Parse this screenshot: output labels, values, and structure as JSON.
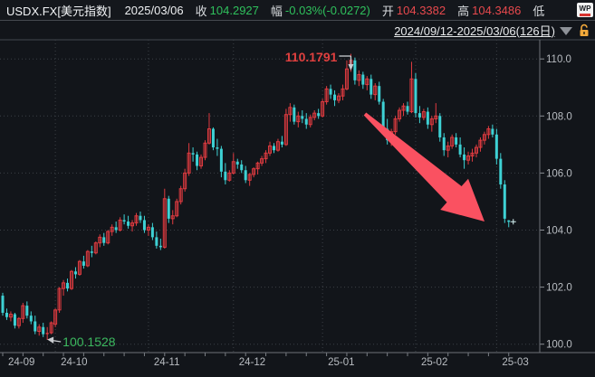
{
  "header": {
    "symbol": "USDX.FX[美元指数]",
    "date": "2025/03/06",
    "fields": [
      {
        "label": "收",
        "value": "104.2927",
        "color": "green"
      },
      {
        "label": "幅",
        "value": "-0.03%(-0.0272)",
        "color": "green"
      },
      {
        "label": "开",
        "value": "104.3382",
        "color": "red"
      },
      {
        "label": "高",
        "value": "104.3486",
        "color": "red"
      },
      {
        "label": "低",
        "value": "",
        "color": "red"
      }
    ],
    "wp_icon_text": "WP"
  },
  "range_bar": {
    "range_text": "2024/09/12-2025/03/06(126日)",
    "dropdown_icon": "chevron-down-icon",
    "lock_icon": "unlocked-padlock-icon"
  },
  "colors": {
    "background": "#12151a",
    "up_candle": "#e03b40",
    "down_candle": "#3ed1d4",
    "grid": "#3b4046",
    "axis": "#6d7178",
    "axis_text": "#b8bcc1",
    "high_annotation": "#e0403f",
    "low_annotation": "#3cb95f",
    "trend_arrow": "#fa5161",
    "annotation_arrow": "#c9ccd0",
    "last_price_marker": "#d8f6f6"
  },
  "chart_data": {
    "type": "candlestick",
    "title": "USDX.FX 美元指数 2024/09/12-2025/03/06 daily candlesticks",
    "y_axis_ticks": [
      "110.0",
      "108.0",
      "106.0",
      "104.0",
      "102.0",
      "100.0"
    ],
    "ylim": [
      99.7,
      110.7
    ],
    "x_ticks": [
      {
        "label": "24-09",
        "index": 0
      },
      {
        "label": "24-10",
        "index": 13
      },
      {
        "label": "24-11",
        "index": 36
      },
      {
        "label": "24-12",
        "index": 57
      },
      {
        "label": "25-01",
        "index": 79
      },
      {
        "label": "25-02",
        "index": 102
      },
      {
        "label": "25-03",
        "index": 122
      }
    ],
    "annotations": {
      "high": {
        "text": "110.1791",
        "price": 110.1791,
        "index": 86
      },
      "low": {
        "text": "100.1528",
        "price": 100.1528,
        "index": 11
      },
      "trend_arrow": {
        "start": [
          403,
          126
        ],
        "tip": [
          535,
          245
        ]
      },
      "last_price_marker": {
        "index": 125,
        "price": 104.2927
      }
    },
    "candles": [
      [
        101.7,
        101.8,
        101.0,
        101.1
      ],
      [
        101.1,
        101.25,
        100.85,
        100.95
      ],
      [
        100.95,
        101.15,
        100.8,
        101.05
      ],
      [
        101.05,
        101.1,
        100.55,
        100.65
      ],
      [
        100.65,
        100.95,
        100.55,
        100.9
      ],
      [
        100.9,
        101.45,
        100.75,
        101.35
      ],
      [
        101.35,
        101.5,
        100.9,
        101.0
      ],
      [
        101.0,
        101.15,
        100.7,
        100.8
      ],
      [
        100.8,
        101.0,
        100.35,
        100.45
      ],
      [
        100.45,
        100.7,
        100.3,
        100.6
      ],
      [
        100.6,
        100.75,
        100.25,
        100.35
      ],
      [
        100.35,
        100.6,
        100.15,
        100.4
      ],
      [
        100.4,
        100.8,
        100.35,
        100.75
      ],
      [
        100.7,
        101.25,
        100.6,
        101.2
      ],
      [
        101.2,
        102.0,
        101.1,
        101.95
      ],
      [
        101.95,
        102.25,
        101.7,
        102.15
      ],
      [
        102.15,
        102.3,
        101.85,
        101.95
      ],
      [
        101.95,
        102.6,
        101.9,
        102.55
      ],
      [
        102.55,
        102.7,
        102.3,
        102.45
      ],
      [
        102.45,
        102.95,
        102.4,
        102.9
      ],
      [
        102.9,
        103.1,
        102.65,
        102.75
      ],
      [
        102.75,
        103.3,
        102.7,
        103.25
      ],
      [
        103.25,
        103.45,
        103.05,
        103.2
      ],
      [
        103.2,
        103.6,
        103.15,
        103.55
      ],
      [
        103.55,
        103.85,
        103.4,
        103.75
      ],
      [
        103.75,
        103.9,
        103.45,
        103.55
      ],
      [
        103.55,
        104.0,
        103.5,
        103.95
      ],
      [
        103.95,
        104.2,
        103.8,
        104.1
      ],
      [
        104.1,
        104.3,
        103.9,
        104.0
      ],
      [
        104.0,
        104.45,
        103.95,
        104.35
      ],
      [
        104.35,
        104.55,
        104.2,
        104.3
      ],
      [
        104.3,
        104.5,
        104.05,
        104.15
      ],
      [
        104.15,
        104.35,
        103.95,
        104.25
      ],
      [
        104.25,
        104.6,
        104.15,
        104.5
      ],
      [
        104.5,
        104.65,
        104.25,
        104.35
      ],
      [
        104.35,
        104.5,
        103.9,
        104.0
      ],
      [
        104.0,
        104.2,
        103.8,
        104.1
      ],
      [
        104.1,
        104.25,
        103.65,
        103.75
      ],
      [
        103.75,
        103.95,
        103.35,
        103.45
      ],
      [
        103.45,
        103.7,
        103.3,
        103.4
      ],
      [
        103.4,
        105.45,
        103.35,
        105.1
      ],
      [
        105.1,
        105.2,
        104.25,
        104.4
      ],
      [
        104.4,
        104.7,
        104.2,
        104.5
      ],
      [
        104.5,
        105.1,
        104.45,
        105.0
      ],
      [
        105.0,
        105.55,
        104.9,
        105.45
      ],
      [
        105.45,
        106.15,
        105.35,
        106.0
      ],
      [
        106.0,
        107.05,
        105.9,
        106.7
      ],
      [
        106.7,
        106.9,
        106.4,
        106.65
      ],
      [
        106.65,
        106.75,
        106.1,
        106.25
      ],
      [
        106.25,
        106.65,
        106.15,
        106.55
      ],
      [
        106.55,
        107.15,
        106.45,
        107.05
      ],
      [
        107.05,
        108.1,
        107.0,
        107.55
      ],
      [
        107.55,
        107.6,
        106.8,
        106.9
      ],
      [
        106.9,
        107.2,
        106.6,
        106.85
      ],
      [
        106.85,
        106.95,
        105.85,
        106.05
      ],
      [
        106.05,
        106.35,
        105.6,
        105.75
      ],
      [
        105.75,
        106.1,
        105.7,
        106.0
      ],
      [
        106.0,
        106.7,
        105.95,
        106.4
      ],
      [
        106.4,
        106.5,
        106.15,
        106.3
      ],
      [
        106.3,
        106.45,
        106.0,
        106.1
      ],
      [
        106.1,
        106.25,
        105.65,
        105.75
      ],
      [
        105.75,
        106.0,
        105.55,
        105.95
      ],
      [
        105.95,
        106.2,
        105.85,
        106.15
      ],
      [
        106.15,
        106.4,
        105.95,
        106.35
      ],
      [
        106.35,
        106.6,
        106.25,
        106.5
      ],
      [
        106.5,
        106.8,
        106.35,
        106.7
      ],
      [
        106.7,
        107.1,
        106.6,
        106.95
      ],
      [
        106.95,
        107.05,
        106.7,
        106.8
      ],
      [
        106.8,
        107.2,
        106.75,
        107.1
      ],
      [
        107.1,
        107.3,
        106.9,
        107.0
      ],
      [
        107.0,
        108.25,
        106.95,
        108.05
      ],
      [
        108.05,
        108.45,
        107.8,
        108.3
      ],
      [
        108.3,
        108.4,
        107.7,
        107.8
      ],
      [
        107.8,
        108.15,
        107.6,
        108.0
      ],
      [
        108.0,
        108.2,
        107.75,
        107.9
      ],
      [
        107.9,
        108.1,
        107.55,
        107.7
      ],
      [
        107.7,
        108.05,
        107.6,
        107.95
      ],
      [
        107.95,
        108.2,
        107.85,
        108.1
      ],
      [
        108.1,
        108.25,
        107.9,
        108.0
      ],
      [
        108.0,
        108.6,
        107.95,
        108.5
      ],
      [
        108.5,
        109.05,
        108.4,
        108.95
      ],
      [
        108.95,
        109.1,
        108.6,
        108.75
      ],
      [
        108.75,
        108.9,
        108.35,
        108.55
      ],
      [
        108.55,
        108.8,
        108.45,
        108.7
      ],
      [
        108.7,
        109.1,
        108.55,
        108.95
      ],
      [
        108.95,
        109.95,
        108.9,
        109.65
      ],
      [
        109.8,
        110.18,
        109.55,
        109.95
      ],
      [
        109.95,
        110.05,
        109.1,
        109.25
      ],
      [
        109.25,
        109.6,
        109.05,
        109.45
      ],
      [
        109.45,
        109.55,
        108.95,
        109.1
      ],
      [
        109.1,
        109.4,
        108.9,
        109.3
      ],
      [
        109.3,
        109.45,
        108.6,
        108.75
      ],
      [
        108.75,
        109.15,
        108.55,
        109.05
      ],
      [
        109.05,
        109.2,
        108.4,
        108.5
      ],
      [
        108.5,
        108.6,
        107.4,
        107.55
      ],
      [
        107.55,
        107.9,
        107.0,
        107.15
      ],
      [
        107.15,
        107.55,
        106.95,
        107.45
      ],
      [
        107.45,
        108.0,
        107.35,
        107.9
      ],
      [
        107.9,
        108.3,
        107.8,
        108.2
      ],
      [
        108.2,
        108.45,
        108.0,
        108.35
      ],
      [
        108.35,
        108.5,
        108.05,
        108.15
      ],
      [
        108.15,
        109.9,
        108.1,
        109.3
      ],
      [
        109.3,
        109.5,
        107.95,
        108.1
      ],
      [
        108.1,
        108.35,
        107.75,
        107.95
      ],
      [
        107.95,
        108.25,
        107.85,
        108.15
      ],
      [
        108.15,
        108.3,
        107.55,
        107.7
      ],
      [
        107.7,
        108.0,
        107.45,
        107.9
      ],
      [
        107.9,
        108.45,
        107.75,
        108.0
      ],
      [
        108.0,
        108.1,
        107.1,
        107.25
      ],
      [
        107.25,
        107.4,
        106.6,
        106.8
      ],
      [
        106.8,
        107.1,
        106.55,
        106.95
      ],
      [
        106.95,
        107.35,
        106.85,
        107.25
      ],
      [
        107.25,
        107.4,
        106.9,
        107.0
      ],
      [
        107.0,
        107.25,
        106.55,
        106.65
      ],
      [
        106.65,
        106.9,
        106.15,
        106.45
      ],
      [
        106.45,
        106.75,
        106.3,
        106.6
      ],
      [
        106.6,
        106.85,
        106.4,
        106.7
      ],
      [
        106.7,
        107.0,
        106.55,
        106.9
      ],
      [
        106.9,
        107.25,
        106.75,
        107.15
      ],
      [
        107.15,
        107.45,
        107.0,
        107.35
      ],
      [
        107.35,
        107.65,
        107.2,
        107.55
      ],
      [
        107.55,
        107.7,
        107.25,
        107.35
      ],
      [
        107.35,
        107.55,
        106.3,
        106.5
      ],
      [
        106.5,
        106.7,
        105.45,
        105.6
      ],
      [
        105.6,
        105.75,
        104.25,
        104.4
      ],
      [
        104.34,
        104.35,
        104.1,
        104.29
      ]
    ]
  }
}
